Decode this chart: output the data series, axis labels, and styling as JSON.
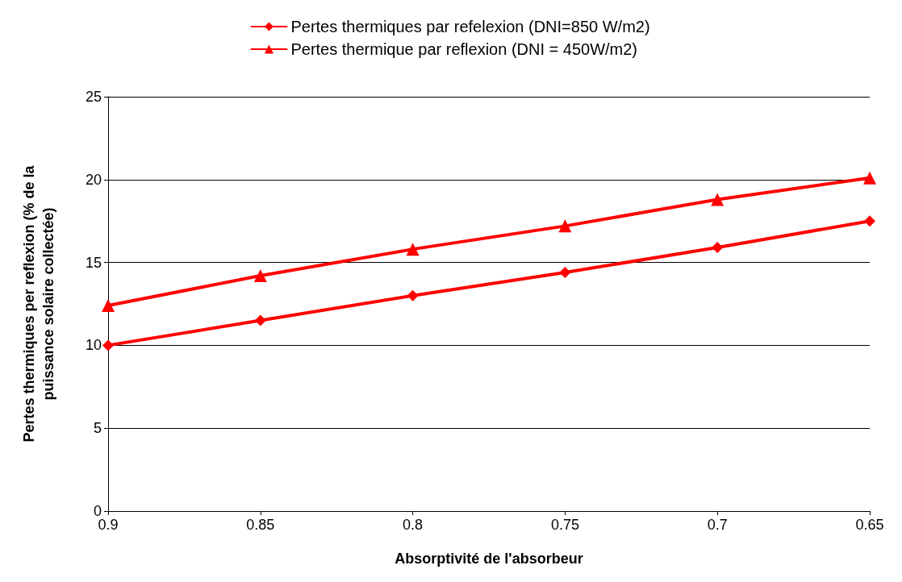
{
  "chart_data": {
    "type": "line",
    "xlabel": "Absorptivité de l'absorbeur",
    "ylabel": "Pertes thermiques per reflexion (% de la\npuissance solaire collectée)",
    "categories": [
      "0.9",
      "0.85",
      "0.8",
      "0.75",
      "0.7",
      "0.65"
    ],
    "series": [
      {
        "name": "Pertes thermiques par refelexion (DNI=850 W/m2)",
        "color": "#ff0000",
        "marker": "diamond",
        "values": [
          10.0,
          11.5,
          13.0,
          14.4,
          15.9,
          17.5
        ]
      },
      {
        "name": "Pertes thermique par reflexion (DNI = 450W/m2)",
        "color": "#ff0000",
        "marker": "triangle",
        "values": [
          12.4,
          14.2,
          15.8,
          17.2,
          18.8,
          20.1
        ]
      }
    ],
    "ylim": [
      0,
      25
    ],
    "yticks": [
      0,
      5,
      10,
      15,
      20,
      25
    ],
    "grid": "y",
    "legend": "top",
    "line_style": "solid"
  }
}
